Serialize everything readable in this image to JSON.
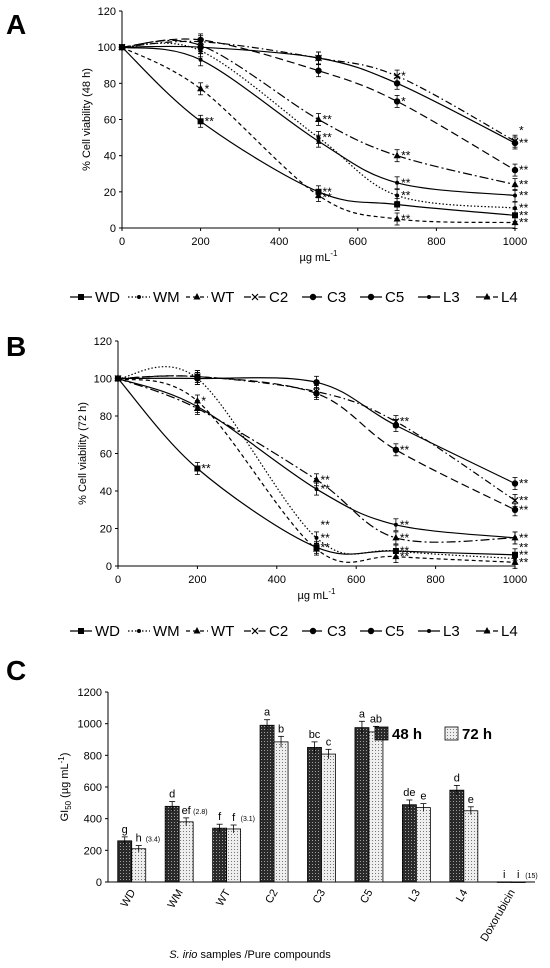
{
  "panels": {
    "a": "A",
    "b": "B",
    "c": "C"
  },
  "chart_data": [
    {
      "type": "line",
      "ylabel": "% Cell viability (48 h)",
      "xlabel": "µg mL",
      "xlabel_sup": "-1",
      "xlim": [
        0,
        1000
      ],
      "ylim": [
        0,
        120
      ],
      "xticks": [
        "0",
        "200",
        "400",
        "600",
        "800",
        "1000"
      ],
      "yticks": [
        "0",
        "20",
        "40",
        "60",
        "80",
        "100",
        "120"
      ],
      "x": [
        0,
        200,
        500,
        700,
        1000
      ],
      "series": [
        {
          "name": "WD",
          "values": [
            100,
            59,
            20,
            13,
            7
          ]
        },
        {
          "name": "WM",
          "values": [
            100,
            98,
            50,
            18,
            11
          ]
        },
        {
          "name": "WT",
          "values": [
            100,
            77,
            18,
            5,
            3
          ]
        },
        {
          "name": "C2",
          "values": [
            100,
            103,
            94,
            84,
            48
          ]
        },
        {
          "name": "C3",
          "values": [
            100,
            104,
            87,
            70,
            32
          ]
        },
        {
          "name": "C5",
          "values": [
            100,
            100,
            94,
            80,
            47
          ]
        },
        {
          "name": "L3",
          "values": [
            100,
            93,
            48,
            25,
            18
          ]
        },
        {
          "name": "L4",
          "values": [
            100,
            101,
            60,
            40,
            24
          ]
        }
      ],
      "significance": [
        {
          "x": 200,
          "y": 77,
          "text": "*"
        },
        {
          "x": 200,
          "y": 59,
          "text": "**"
        },
        {
          "x": 500,
          "y": 60,
          "text": "**"
        },
        {
          "x": 500,
          "y": 50,
          "text": "**"
        },
        {
          "x": 500,
          "y": 20,
          "text": "**"
        },
        {
          "x": 500,
          "y": 17,
          "text": "**"
        },
        {
          "x": 700,
          "y": 84,
          "text": "*"
        },
        {
          "x": 700,
          "y": 70,
          "text": "*"
        },
        {
          "x": 700,
          "y": 40,
          "text": "**"
        },
        {
          "x": 700,
          "y": 25,
          "text": "**"
        },
        {
          "x": 700,
          "y": 18,
          "text": "**"
        },
        {
          "x": 700,
          "y": 5,
          "text": "**"
        },
        {
          "x": 1000,
          "y": 54,
          "text": "*"
        },
        {
          "x": 1000,
          "y": 47,
          "text": "**"
        },
        {
          "x": 1000,
          "y": 32,
          "text": "**"
        },
        {
          "x": 1000,
          "y": 24,
          "text": "**"
        },
        {
          "x": 1000,
          "y": 18,
          "text": "**"
        },
        {
          "x": 1000,
          "y": 11,
          "text": "**"
        },
        {
          "x": 1000,
          "y": 7,
          "text": "**"
        },
        {
          "x": 1000,
          "y": 3,
          "text": "**"
        }
      ]
    },
    {
      "type": "line",
      "ylabel": "% Cell viability (72 h)",
      "xlabel": "µg mL",
      "xlabel_sup": "-1",
      "xlim": [
        0,
        1000
      ],
      "ylim": [
        0,
        120
      ],
      "xticks": [
        "0",
        "200",
        "400",
        "600",
        "800",
        "1000"
      ],
      "yticks": [
        "0",
        "20",
        "40",
        "60",
        "80",
        "100",
        "120"
      ],
      "x": [
        0,
        200,
        500,
        700,
        1000
      ],
      "series": [
        {
          "name": "WD",
          "values": [
            100,
            52,
            10,
            8,
            6
          ]
        },
        {
          "name": "WM",
          "values": [
            100,
            100,
            15,
            8,
            4
          ]
        },
        {
          "name": "WT",
          "values": [
            100,
            88,
            9,
            5,
            2
          ]
        },
        {
          "name": "C2",
          "values": [
            100,
            101,
            93,
            77,
            35
          ]
        },
        {
          "name": "C3",
          "values": [
            100,
            101,
            92,
            62,
            30
          ]
        },
        {
          "name": "C5",
          "values": [
            100,
            100,
            98,
            75,
            44
          ]
        },
        {
          "name": "L3",
          "values": [
            100,
            85,
            41,
            22,
            15
          ]
        },
        {
          "name": "L4",
          "values": [
            100,
            84,
            46,
            15,
            15
          ]
        }
      ],
      "significance": [
        {
          "x": 200,
          "y": 88,
          "text": "*"
        },
        {
          "x": 200,
          "y": 52,
          "text": "**"
        },
        {
          "x": 500,
          "y": 46,
          "text": "**"
        },
        {
          "x": 500,
          "y": 41,
          "text": "**"
        },
        {
          "x": 500,
          "y": 22,
          "text": "**"
        },
        {
          "x": 500,
          "y": 15,
          "text": "**"
        },
        {
          "x": 500,
          "y": 10,
          "text": "**"
        },
        {
          "x": 700,
          "y": 77,
          "text": "**"
        },
        {
          "x": 700,
          "y": 62,
          "text": "**"
        },
        {
          "x": 700,
          "y": 22,
          "text": "**"
        },
        {
          "x": 700,
          "y": 15,
          "text": "**"
        },
        {
          "x": 700,
          "y": 8,
          "text": "**"
        },
        {
          "x": 700,
          "y": 5,
          "text": "**"
        },
        {
          "x": 1000,
          "y": 44,
          "text": "**"
        },
        {
          "x": 1000,
          "y": 35,
          "text": "**"
        },
        {
          "x": 1000,
          "y": 30,
          "text": "**"
        },
        {
          "x": 1000,
          "y": 15,
          "text": "**"
        },
        {
          "x": 1000,
          "y": 10,
          "text": "**"
        },
        {
          "x": 1000,
          "y": 6,
          "text": "**"
        },
        {
          "x": 1000,
          "y": 2,
          "text": "**"
        }
      ]
    },
    {
      "type": "bar",
      "ylabel": "GI",
      "ylabel_sub": "50",
      "ylabel_unit": " (µg mL",
      "ylabel_sup": "-1",
      "ylabel_close": ")",
      "xlabel_italic": "S. irio",
      "xlabel_rest": " samples /Pure compounds",
      "ylim": [
        0,
        1200
      ],
      "yticks": [
        "0",
        "200",
        "400",
        "600",
        "800",
        "1000",
        "1200"
      ],
      "categories": [
        "WD",
        "WM",
        "WT",
        "C2",
        "C3",
        "C5",
        "L3",
        "L4",
        "Doxorubicin"
      ],
      "series": [
        {
          "name": "48 h",
          "values": [
            260,
            478,
            340,
            990,
            850,
            975,
            488,
            580,
            1
          ],
          "errors": [
            25,
            30,
            25,
            35,
            35,
            40,
            30,
            30,
            0
          ],
          "letters": [
            "g",
            "d",
            "f",
            "a",
            "bc",
            "a",
            "de",
            "d",
            "i"
          ],
          "subs": [
            "",
            "",
            "",
            "",
            "",
            "",
            "",
            "",
            ""
          ]
        },
        {
          "name": "72 h",
          "values": [
            210,
            380,
            335,
            885,
            808,
            948,
            470,
            450,
            0.5
          ],
          "errors": [
            20,
            25,
            25,
            35,
            30,
            35,
            25,
            25,
            0
          ],
          "letters": [
            "h",
            "ef",
            "f",
            "b",
            "c",
            "ab",
            "e",
            "e",
            "i"
          ],
          "subs": [
            "(3.4)",
            "(2.8)",
            "(3.1)",
            "",
            "",
            "",
            "",
            "",
            "(15)"
          ]
        }
      ],
      "legend": "top-right"
    }
  ]
}
